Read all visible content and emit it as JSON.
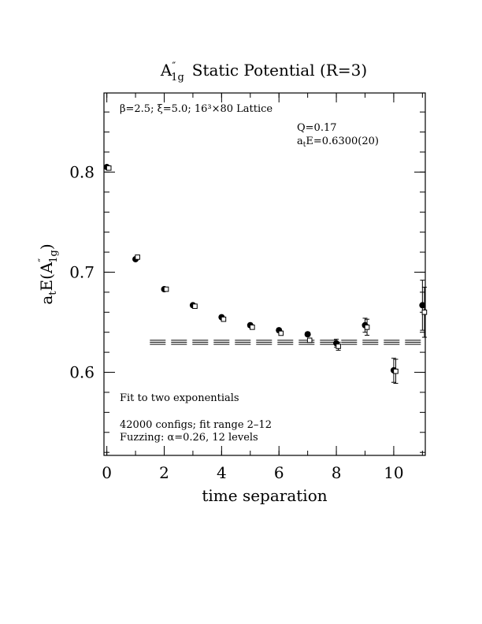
{
  "chart_data": {
    "type": "scatter",
    "title": "A″1g Static Potential (R=3)",
    "title_main": "A",
    "title_sup": "″",
    "title_sub": "1g",
    "title_rest": "Static Potential (R=3)",
    "xlabel": "time separation",
    "ylabel_prefix": "a",
    "ylabel_sub_t": "t",
    "ylabel_mid": "E(A",
    "ylabel_sup": "″",
    "ylabel_sub": "1g",
    "ylabel_end": ")",
    "xlim": [
      -0.1,
      11.1
    ],
    "ylim": [
      0.517,
      0.879
    ],
    "x_ticks": [
      0,
      2,
      4,
      6,
      8,
      10
    ],
    "x_tick_labels": [
      "0",
      "2",
      "4",
      "6",
      "8",
      "10"
    ],
    "y_ticks": [
      0.6,
      0.7,
      0.8
    ],
    "y_tick_labels": [
      "0.6",
      "0.7",
      "0.8"
    ],
    "x_minor_step": 1,
    "y_minor_step": 0.02,
    "annotations": {
      "lattice": "β=2.5; ξ=5.0; 16³×80 Lattice",
      "q_value": "Q=0.17",
      "energy_prefix": "a",
      "energy_sub": "t",
      "energy_rest": "E=0.6300(20)",
      "fit_method": "Fit to two exponentials",
      "configs": "42000 configs; fit range 2–12",
      "fuzzing": "Fuzzing: α=0.26, 12 levels"
    },
    "fit": {
      "x_range": [
        1.5,
        11.1
      ],
      "value": 0.63,
      "error": 0.002
    },
    "series": [
      {
        "marker": "filled-circle",
        "x": [
          0,
          1,
          2,
          3,
          4,
          5,
          6,
          7,
          8,
          9,
          10,
          11
        ],
        "y": [
          0.805,
          0.713,
          0.683,
          0.667,
          0.655,
          0.647,
          0.642,
          0.638,
          0.629,
          0.647,
          0.602,
          0.667
        ],
        "err": [
          0.001,
          0.0015,
          0.0015,
          0.0015,
          0.0015,
          0.002,
          0.002,
          0.002,
          0.004,
          0.007,
          0.012,
          0.025
        ]
      },
      {
        "marker": "open-square",
        "x": [
          0.07,
          1.07,
          2.07,
          3.07,
          4.07,
          5.07,
          6.07,
          7.07,
          8.07,
          9.07,
          10.07,
          11.07
        ],
        "y": [
          0.804,
          0.715,
          0.683,
          0.666,
          0.653,
          0.645,
          0.639,
          0.632,
          0.626,
          0.645,
          0.601,
          0.66
        ],
        "err": [
          0.001,
          0.0015,
          0.0015,
          0.0015,
          0.0015,
          0.002,
          0.002,
          0.002,
          0.004,
          0.008,
          0.012,
          0.025
        ]
      }
    ]
  }
}
